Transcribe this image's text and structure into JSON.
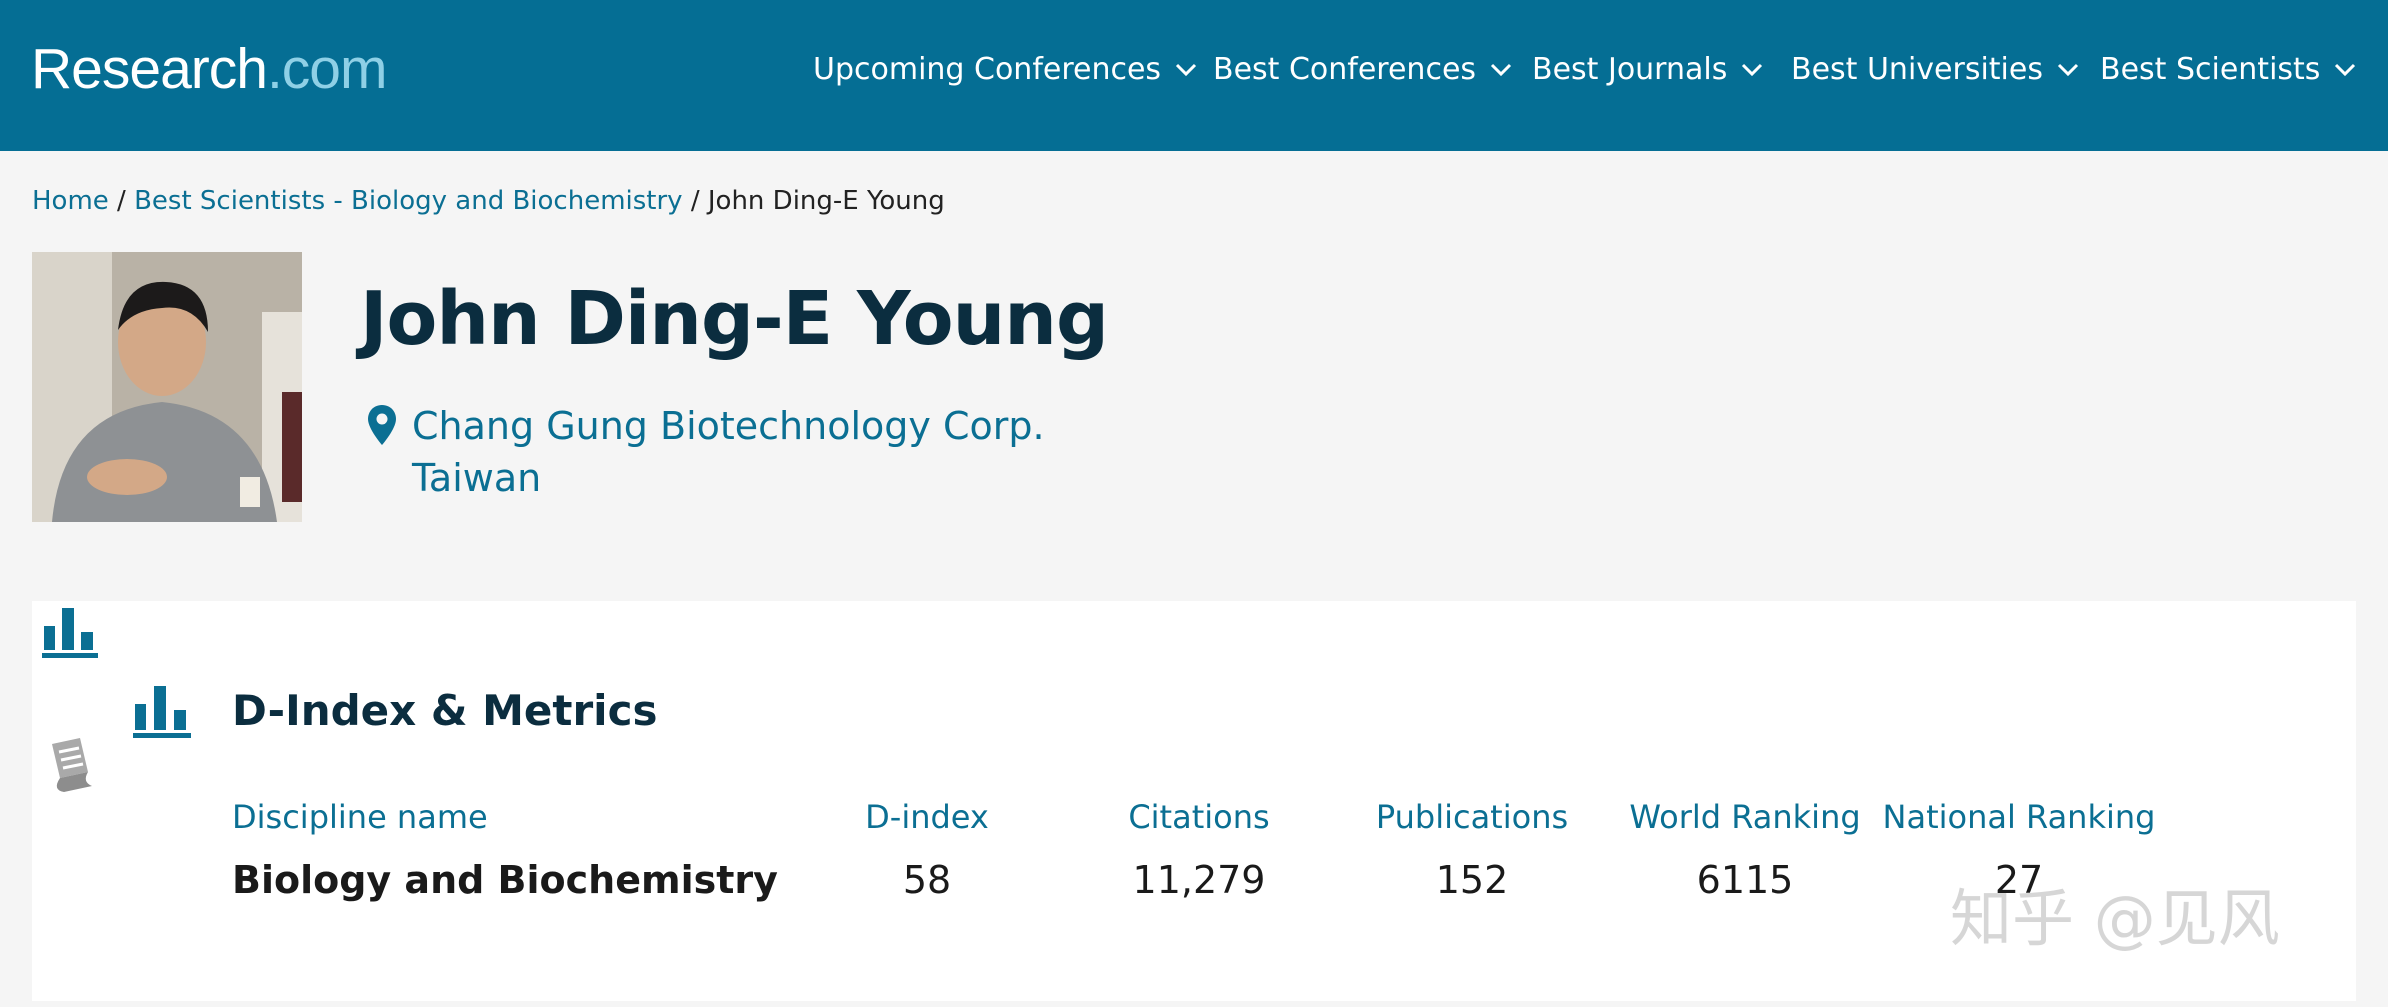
{
  "header": {
    "logo_main": "Research",
    "logo_domain": ".com",
    "nav": [
      {
        "label": "Upcoming Conferences"
      },
      {
        "label": "Best Conferences"
      },
      {
        "label": "Best Journals"
      },
      {
        "label": "Best Universities"
      },
      {
        "label": "Best Scientists"
      }
    ]
  },
  "breadcrumb": {
    "home": "Home",
    "sep1": " / ",
    "category": "Best Scientists - Biology and Biochemistry",
    "sep2": " / ",
    "current": "John Ding-E Young"
  },
  "profile": {
    "name": "John Ding-E Young",
    "institution": "Chang Gung Biotechnology Corp.",
    "country": "Taiwan"
  },
  "metrics": {
    "title": "D-Index & Metrics",
    "columns": [
      "Discipline name",
      "D-index",
      "Citations",
      "Publications",
      "World Ranking",
      "National Ranking"
    ],
    "rows": [
      {
        "discipline": "Biology and Biochemistry",
        "d_index": "58",
        "citations": "11,279",
        "publications": "152",
        "world_ranking": "6115",
        "national_ranking": "27"
      }
    ]
  },
  "watermark": "知乎 @见风",
  "colors": {
    "brand": "#056e94",
    "link": "#0b6f93",
    "heading": "#0b2d3f"
  },
  "icons": [
    "chevron-down-icon",
    "location-pin-icon",
    "bar-chart-icon",
    "scroll-icon"
  ]
}
